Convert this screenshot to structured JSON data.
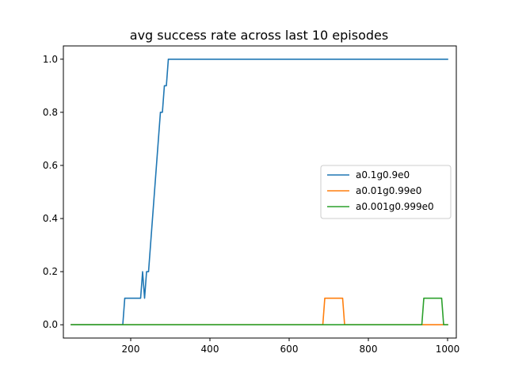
{
  "chart_data": {
    "type": "line",
    "title": "avg success rate across last 10 episodes",
    "xlabel": "",
    "ylabel": "",
    "xlim": [
      30,
      1022
    ],
    "ylim": [
      -0.05,
      1.05
    ],
    "xticks": [
      200,
      400,
      600,
      800,
      1000
    ],
    "yticks": [
      0.0,
      0.2,
      0.4,
      0.6,
      0.8,
      1.0
    ],
    "grid": false,
    "legend_position": "center-right",
    "series": [
      {
        "name": "a0.1g0.9e0",
        "color": "#1f77b4",
        "x": [
          50,
          180,
          185,
          225,
          230,
          235,
          240,
          245,
          270,
          275,
          280,
          285,
          290,
          295,
          1000
        ],
        "y": [
          0.0,
          0.0,
          0.1,
          0.1,
          0.2,
          0.1,
          0.2,
          0.2,
          0.7,
          0.8,
          0.8,
          0.9,
          0.9,
          1.0,
          1.0
        ]
      },
      {
        "name": "a0.01g0.99e0",
        "color": "#ff7f0e",
        "x": [
          50,
          685,
          690,
          735,
          740,
          1000
        ],
        "y": [
          0.0,
          0.0,
          0.1,
          0.1,
          0.0,
          0.0
        ]
      },
      {
        "name": "a0.001g0.999e0",
        "color": "#2ca02c",
        "x": [
          50,
          935,
          940,
          985,
          990,
          1000
        ],
        "y": [
          0.0,
          0.0,
          0.1,
          0.1,
          0.0,
          0.0
        ]
      }
    ]
  }
}
